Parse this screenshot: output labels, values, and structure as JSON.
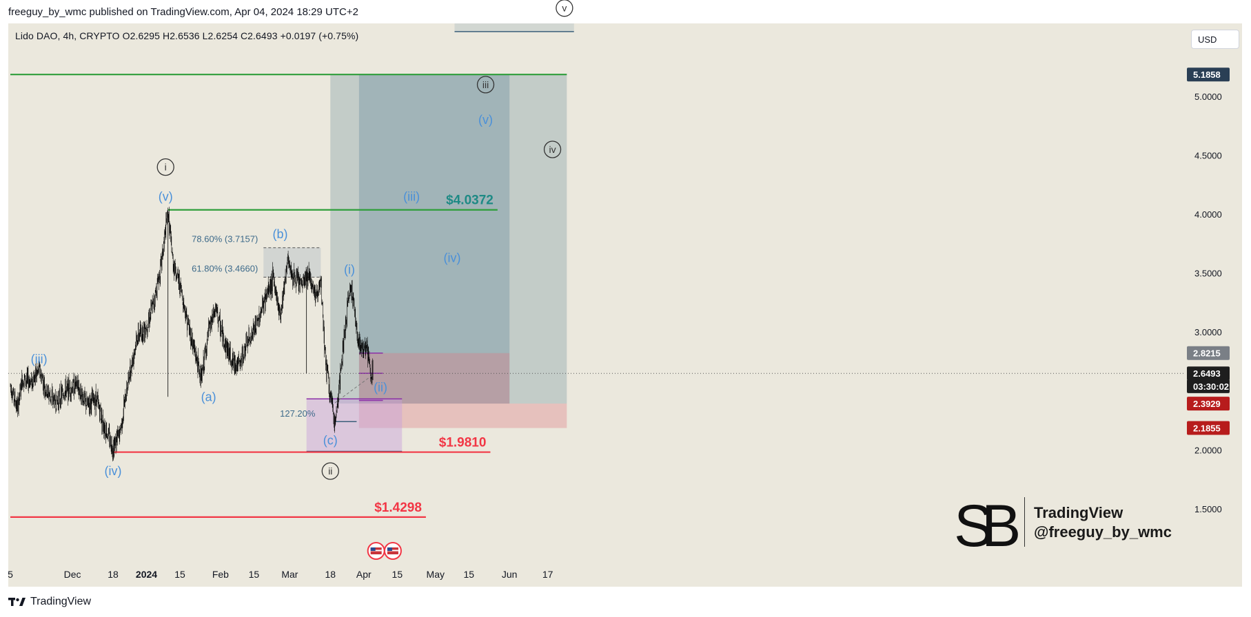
{
  "header": {
    "published_line": "freeguy_by_wmc published on TradingView.com, Apr 04, 2024 18:29 UTC+2"
  },
  "ohlc": {
    "text": "Lido DAO, 4h, CRYPTO  O2.6295  H2.6536  L2.6254  C2.6493  +0.0197 (+0.75%)"
  },
  "currency_button": {
    "label": "USD"
  },
  "footer": {
    "brand": "TradingView"
  },
  "watermark": {
    "line1": "TradingView",
    "line2": "@freeguy_by_wmc",
    "logo_letters": "SB"
  },
  "colors": {
    "background": "#ebe8dd",
    "green": "#2e9e3a",
    "red": "#f23645",
    "blue_label": "#4a90d9",
    "teal_label": "#1e8a85",
    "candle": "#000000"
  },
  "chart_data": {
    "type": "candlestick",
    "symbol": "Lido DAO",
    "timeframe": "4h",
    "exchange": "CRYPTO",
    "ylim": [
      1.25,
      5.6
    ],
    "y_ticks": [
      "5.0000",
      "4.5000",
      "4.0000",
      "3.5000",
      "3.0000",
      "2.0000",
      "1.5000"
    ],
    "x_ticks": [
      {
        "label": "5",
        "date": "2023-11-05"
      },
      {
        "label": "Dec",
        "date": "2023-12-01"
      },
      {
        "label": "18",
        "date": "2023-12-18"
      },
      {
        "label": "2024",
        "date": "2024-01-01"
      },
      {
        "label": "15",
        "date": "2024-01-15"
      },
      {
        "label": "Feb",
        "date": "2024-02-01"
      },
      {
        "label": "15",
        "date": "2024-02-15"
      },
      {
        "label": "Mar",
        "date": "2024-03-01"
      },
      {
        "label": "18",
        "date": "2024-03-18"
      },
      {
        "label": "Apr",
        "date": "2024-04-01"
      },
      {
        "label": "15",
        "date": "2024-04-15"
      },
      {
        "label": "May",
        "date": "2024-05-01"
      },
      {
        "label": "15",
        "date": "2024-05-15"
      },
      {
        "label": "Jun",
        "date": "2024-06-01"
      },
      {
        "label": "17",
        "date": "2024-06-17"
      }
    ],
    "price_path": [
      [
        "2023-11-05",
        2.55
      ],
      [
        "2023-11-08",
        2.35
      ],
      [
        "2023-11-10",
        2.6
      ],
      [
        "2023-11-14",
        2.58
      ],
      [
        "2023-11-17",
        2.68
      ],
      [
        "2023-11-20",
        2.5
      ],
      [
        "2023-11-24",
        2.4
      ],
      [
        "2023-11-28",
        2.5
      ],
      [
        "2023-12-03",
        2.55
      ],
      [
        "2023-12-07",
        2.38
      ],
      [
        "2023-12-11",
        2.44
      ],
      [
        "2023-12-14",
        2.22
      ],
      [
        "2023-12-18",
        2.02
      ],
      [
        "2023-12-21",
        2.15
      ],
      [
        "2023-12-24",
        2.55
      ],
      [
        "2023-12-28",
        2.95
      ],
      [
        "2024-01-01",
        3.05
      ],
      [
        "2024-01-04",
        3.25
      ],
      [
        "2024-01-07",
        3.55
      ],
      [
        "2024-01-10",
        4.02
      ],
      [
        "2024-01-12",
        3.6
      ],
      [
        "2024-01-15",
        3.4
      ],
      [
        "2024-01-18",
        3.1
      ],
      [
        "2024-01-21",
        2.85
      ],
      [
        "2024-01-24",
        2.6
      ],
      [
        "2024-01-27",
        3.0
      ],
      [
        "2024-01-30",
        3.2
      ],
      [
        "2024-02-02",
        2.95
      ],
      [
        "2024-02-06",
        2.75
      ],
      [
        "2024-02-09",
        2.72
      ],
      [
        "2024-02-12",
        2.9
      ],
      [
        "2024-02-16",
        3.05
      ],
      [
        "2024-02-20",
        3.3
      ],
      [
        "2024-02-23",
        3.45
      ],
      [
        "2024-02-26",
        3.15
      ],
      [
        "2024-02-29",
        3.6
      ],
      [
        "2024-03-03",
        3.45
      ],
      [
        "2024-03-06",
        3.4
      ],
      [
        "2024-03-09",
        3.5
      ],
      [
        "2024-03-12",
        3.3
      ],
      [
        "2024-03-14",
        3.4
      ],
      [
        "2024-03-16",
        2.75
      ],
      [
        "2024-03-18",
        2.45
      ],
      [
        "2024-03-20",
        2.22
      ],
      [
        "2024-03-22",
        2.6
      ],
      [
        "2024-03-24",
        3.0
      ],
      [
        "2024-03-26",
        3.35
      ],
      [
        "2024-03-27",
        3.38
      ],
      [
        "2024-03-29",
        3.0
      ],
      [
        "2024-03-31",
        2.85
      ],
      [
        "2024-04-02",
        2.9
      ],
      [
        "2024-04-04",
        2.62
      ],
      [
        "2024-04-05",
        2.6493
      ]
    ],
    "events": [
      {
        "date": "2024-01-10",
        "value": 2.45
      },
      {
        "date": "2024-03-08",
        "value": 2.65
      }
    ],
    "price_labels": [
      {
        "text": "5.1858",
        "value": 5.1858,
        "style": "dark"
      },
      {
        "text": "2.8215",
        "value": 2.8215,
        "style": "gray"
      },
      {
        "text": "2.6493",
        "value": 2.6493,
        "style": "current"
      },
      {
        "text": "03:30:02",
        "value": 2.54,
        "style": "current"
      },
      {
        "text": "2.3929",
        "value": 2.3929,
        "style": "red"
      },
      {
        "text": "2.1855",
        "value": 2.1855,
        "style": "red"
      }
    ],
    "horizontal_levels": [
      {
        "value": 5.1858,
        "from": "2023-11-05",
        "to": "2024-06-25",
        "color": "green"
      },
      {
        "value": 4.0372,
        "from": "2024-01-10",
        "to": "2024-05-27",
        "color": "green",
        "label": "$4.0372",
        "label_color": "teal"
      },
      {
        "value": 1.981,
        "from": "2023-12-18",
        "to": "2024-05-24",
        "color": "red",
        "label": "$1.9810",
        "label_color": "red"
      },
      {
        "value": 1.4298,
        "from": "2023-11-05",
        "to": "2024-04-27",
        "color": "red",
        "label": "$1.4298",
        "label_color": "red"
      }
    ],
    "fib_retracement": {
      "levels": [
        {
          "label": "78.60% (3.7157)",
          "value": 3.7157
        },
        {
          "label": "61.80% (3.4660)",
          "value": 3.466
        }
      ],
      "from": "2024-02-19",
      "to": "2024-03-14"
    },
    "fib_extension": {
      "label": "127.20%",
      "value": 2.24,
      "from": "2024-03-14",
      "to": "2024-03-29"
    },
    "zones": [
      {
        "name": "target-zone-outer",
        "from": "2024-03-18",
        "to": "2024-06-25",
        "top": 5.1858,
        "bottom": 2.3929,
        "color": "rgba(146,170,176,0.45)"
      },
      {
        "name": "target-zone-inner",
        "from": "2024-03-30",
        "to": "2024-06-01",
        "top": 5.1858,
        "bottom": 2.3929,
        "color": "rgba(110,145,160,0.40)"
      },
      {
        "name": "stop-zone-near",
        "from": "2024-03-30",
        "to": "2024-06-01",
        "top": 2.8215,
        "bottom": 2.3929,
        "color": "rgba(220,120,130,0.35)"
      },
      {
        "name": "stop-zone-far",
        "from": "2024-03-30",
        "to": "2024-06-25",
        "top": 2.3929,
        "bottom": 2.1855,
        "color": "rgba(220,120,130,0.35)"
      },
      {
        "name": "correction-box",
        "from": "2024-03-08",
        "to": "2024-04-17",
        "top": 2.4329,
        "bottom": 1.9881,
        "color": "rgba(200,160,220,0.45)"
      },
      {
        "name": "top-right-box",
        "from": "2024-05-09",
        "to": "2024-06-28",
        "top": 5.78,
        "bottom": 5.55,
        "color": "rgba(190,200,200,0.55)"
      }
    ],
    "wave_labels": [
      {
        "text": "(iii)",
        "date": "2023-11-17",
        "value": 2.77,
        "style": "blue"
      },
      {
        "text": "(iv)",
        "date": "2023-12-18",
        "value": 1.82,
        "style": "blue"
      },
      {
        "text": "i",
        "date": "2024-01-09",
        "value": 4.4,
        "style": "circle"
      },
      {
        "text": "(v)",
        "date": "2024-01-09",
        "value": 4.15,
        "style": "blue"
      },
      {
        "text": "(a)",
        "date": "2024-01-27",
        "value": 2.45,
        "style": "blue"
      },
      {
        "text": "(b)",
        "date": "2024-02-26",
        "value": 3.83,
        "style": "blue"
      },
      {
        "text": "(c)",
        "date": "2024-03-18",
        "value": 2.08,
        "style": "blue"
      },
      {
        "text": "ii",
        "date": "2024-03-18",
        "value": 1.82,
        "style": "circle"
      },
      {
        "text": "(i)",
        "date": "2024-03-26",
        "value": 3.53,
        "style": "blue"
      },
      {
        "text": "(ii)",
        "date": "2024-04-08",
        "value": 2.53,
        "style": "blue"
      },
      {
        "text": "(iii)",
        "date": "2024-04-21",
        "value": 4.15,
        "style": "blue"
      },
      {
        "text": "(iv)",
        "date": "2024-05-08",
        "value": 3.63,
        "style": "blue"
      },
      {
        "text": "(v)",
        "date": "2024-05-22",
        "value": 4.8,
        "style": "blue"
      },
      {
        "text": "iii",
        "date": "2024-05-22",
        "value": 5.1,
        "style": "circle"
      },
      {
        "text": "iv",
        "date": "2024-06-19",
        "value": 4.55,
        "style": "circle"
      },
      {
        "text": "v",
        "date": "2024-06-24",
        "value": 5.75,
        "style": "circle"
      }
    ]
  }
}
